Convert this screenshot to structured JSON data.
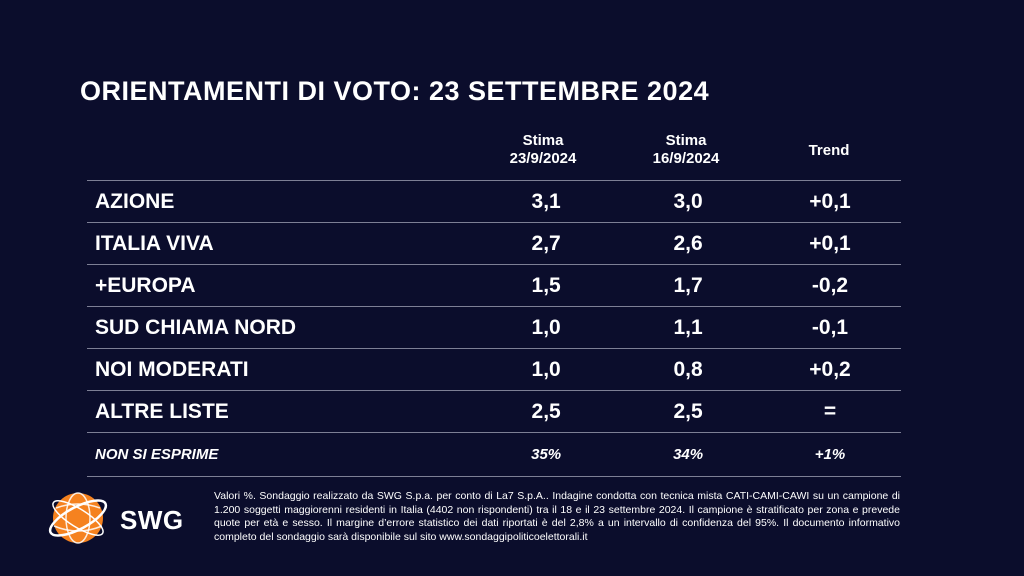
{
  "title": "ORIENTAMENTI DI VOTO: 23 SETTEMBRE 2024",
  "columns": [
    {
      "line1": "Stima",
      "line2": "23/9/2024"
    },
    {
      "line1": "Stima",
      "line2": "16/9/2024"
    },
    {
      "line1": "Trend",
      "line2": ""
    }
  ],
  "rows": [
    {
      "party": "AZIONE",
      "current": "3,1",
      "previous": "3,0",
      "trend": "+0,1"
    },
    {
      "party": "ITALIA VIVA",
      "current": "2,7",
      "previous": "2,6",
      "trend": "+0,1"
    },
    {
      "party": "+EUROPA",
      "current": "1,5",
      "previous": "1,7",
      "trend": "-0,2"
    },
    {
      "party": "SUD CHIAMA NORD",
      "current": "1,0",
      "previous": "1,1",
      "trend": "-0,1"
    },
    {
      "party": "NOI MODERATI",
      "current": "1,0",
      "previous": "0,8",
      "trend": "+0,2"
    },
    {
      "party": "ALTRE LISTE",
      "current": "2,5",
      "previous": "2,5",
      "trend": "="
    },
    {
      "party": "NON SI ESPRIME",
      "current": "35%",
      "previous": "34%",
      "trend": "+1%"
    }
  ],
  "logo": {
    "text": "SWG",
    "accent": "#f5821f"
  },
  "footnote": "Valori %. Sondaggio realizzato da SWG S.p.a. per conto di La7 S.p.A.. Indagine condotta con tecnica mista CATI-CAMI-CAWI su un campione di 1.200 soggetti maggiorenni residenti in Italia (4402 non rispondenti) tra il 18 e il 23 settembre 2024. Il campione è stratificato per zona e prevede quote per età e sesso. Il margine d’errore statistico dei dati riportati è del 2,8% a un intervallo di confidenza del 95%. Il documento informativo completo del sondaggio sarà disponibile sul sito www.sondaggipoliticoelettorali.it",
  "colors": {
    "background": "#0b0d2c",
    "text": "#ffffff",
    "divider": "#7d7f95"
  }
}
